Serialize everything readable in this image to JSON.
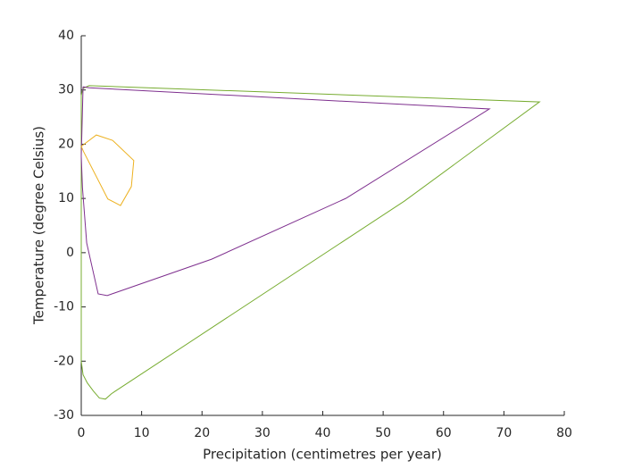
{
  "chart_data": {
    "type": "line",
    "x_label": "Precipitation (centimetres per year)",
    "y_label": "Temperature (degree Celsius)",
    "xlim": [
      0,
      80
    ],
    "xticks": [
      0,
      10,
      20,
      30,
      40,
      50,
      60,
      70,
      80
    ],
    "ylim": [
      -30,
      40
    ],
    "yticks": [
      -30,
      -20,
      -10,
      0,
      10,
      20,
      30,
      40
    ],
    "series": [
      {
        "color": "#77ac30",
        "x": [
          0,
          0.3,
          1,
          2,
          3,
          4,
          5,
          53.5,
          75.9,
          1.3,
          0.3,
          0,
          0
        ],
        "values": [
          -20,
          -22.5,
          -24,
          -25.5,
          -26.8,
          -27,
          -26,
          9.5,
          27.8,
          30.8,
          30.3,
          29,
          -20
        ]
      },
      {
        "color": "#7e2f8e",
        "x": [
          0.3,
          1.3,
          67.6,
          43.8,
          21.6,
          4.3,
          2.8,
          0.9,
          0.2,
          0,
          0.3
        ],
        "values": [
          30.6,
          30.4,
          26.5,
          10,
          -1.2,
          -7.9,
          -7.6,
          1.8,
          12,
          17.8,
          30.6
        ]
      },
      {
        "color": "#edb120",
        "x": [
          0,
          2.5,
          5.2,
          8.7,
          8.3,
          6.5,
          4.4,
          0.4,
          0
        ],
        "values": [
          19.6,
          21.7,
          20.7,
          17,
          12.2,
          8.7,
          9.9,
          18.6,
          19.6
        ]
      }
    ]
  }
}
